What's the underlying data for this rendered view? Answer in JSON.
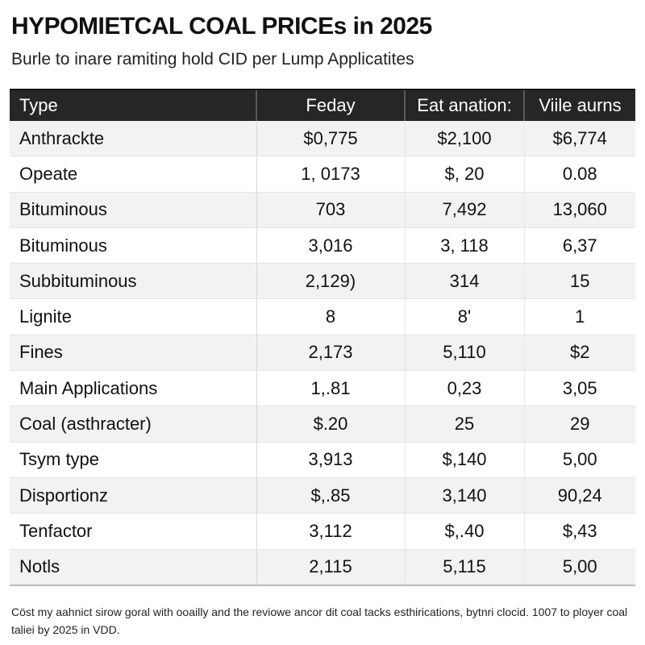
{
  "header": {
    "title": "HYPOMIETCAL COAL PRICEs in 2025",
    "subtitle": "Burle to inare ramiting hold CID per Lump Applicatites"
  },
  "table": {
    "columns": [
      "Type",
      "Feday",
      "Eat anation:",
      "Viile aurns"
    ],
    "rows": [
      {
        "type": "Anthrackte",
        "c1": "$0,775",
        "c2": "$2,100",
        "c3": "$6,774"
      },
      {
        "type": "Opeate",
        "c1": "1, 0173",
        "c2": "$, 20",
        "c3": "0.08"
      },
      {
        "type": "Bituminous",
        "c1": "703",
        "c2": "7,492",
        "c3": "13,060"
      },
      {
        "type": "Bituminous",
        "c1": "3,016",
        "c2": "3, 118",
        "c3": "6,37"
      },
      {
        "type": "Subbituminous",
        "c1": "2,129)",
        "c2": "314",
        "c3": "15"
      },
      {
        "type": "Lignite",
        "c1": "8",
        "c2": "8'",
        "c3": "1"
      },
      {
        "type": "Fines",
        "c1": "2,173",
        "c2": "5,110",
        "c3": "$2"
      },
      {
        "type": "Main Applications",
        "c1": "1,.81",
        "c2": "0,23",
        "c3": "3,05"
      },
      {
        "type": "Coal (asthracter)",
        "c1": "$.20",
        "c2": "25",
        "c3": "29"
      },
      {
        "type": "Tsym type",
        "c1": "3,913",
        "c2": "$,140",
        "c3": "5,00"
      },
      {
        "type": "Disportionz",
        "c1": "$,.85",
        "c2": "3,140",
        "c3": "90,24"
      },
      {
        "type": "Tenfactor",
        "c1": "3,112",
        "c2": "$,.40",
        "c3": "$,43"
      },
      {
        "type": "Notls",
        "c1": "2,115",
        "c2": "5,115",
        "c3": "5,00"
      }
    ]
  },
  "footnote": "Cöst my aahnict sirow goral with ooailly and the reviowe ancor dit coal tacks esthirications, bytnri clocid. 1007 to ployer coal taliei by 2025 in VDD.",
  "colors": {
    "header_bg": "#262626",
    "header_text": "#ffffff",
    "row_alt": "#f2f2f2"
  }
}
